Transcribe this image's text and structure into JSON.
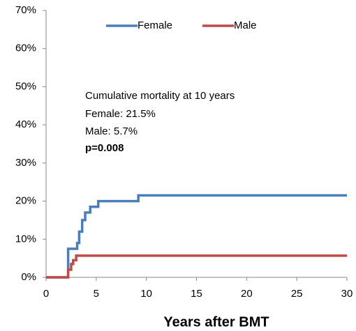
{
  "chart_data": {
    "type": "line",
    "x_label": "Years after BMT",
    "xlim": [
      0,
      30
    ],
    "xticks": [
      0,
      5,
      10,
      15,
      20,
      25,
      30
    ],
    "ylim": [
      0,
      70
    ],
    "yticks": [
      {
        "value": 0,
        "label": "0%"
      },
      {
        "value": 10,
        "label": "10%"
      },
      {
        "value": 20,
        "label": "20%"
      },
      {
        "value": 30,
        "label": "30%"
      },
      {
        "value": 40,
        "label": "40%"
      },
      {
        "value": 50,
        "label": "50%"
      },
      {
        "value": 60,
        "label": "60%"
      },
      {
        "value": 70,
        "label": "70%"
      }
    ],
    "legend": "top",
    "annotations": [
      "Cumulative mortality at 10 years",
      "Female:  21.5%",
      "Male: 5.7%",
      "p=0.008"
    ],
    "series": [
      {
        "name": "Female",
        "color": "#4a7ebb",
        "x": [
          0,
          2.2,
          2.2,
          3.1,
          3.1,
          3.3,
          3.3,
          3.6,
          3.6,
          3.9,
          3.9,
          4.4,
          4.4,
          5.2,
          5.2,
          9.2,
          9.2,
          30
        ],
        "values": [
          0,
          0,
          7.5,
          7.5,
          9,
          9,
          12,
          12,
          15,
          15,
          17,
          17,
          18.5,
          18.5,
          20,
          20,
          21.5,
          21.5
        ]
      },
      {
        "name": "Male",
        "color": "#be4b48",
        "x": [
          0,
          2.2,
          2.2,
          2.5,
          2.5,
          2.7,
          2.7,
          3.0,
          3.0,
          30
        ],
        "values": [
          0,
          0,
          2,
          2,
          3.5,
          3.5,
          4.5,
          4.5,
          5.7,
          5.7
        ]
      }
    ]
  }
}
